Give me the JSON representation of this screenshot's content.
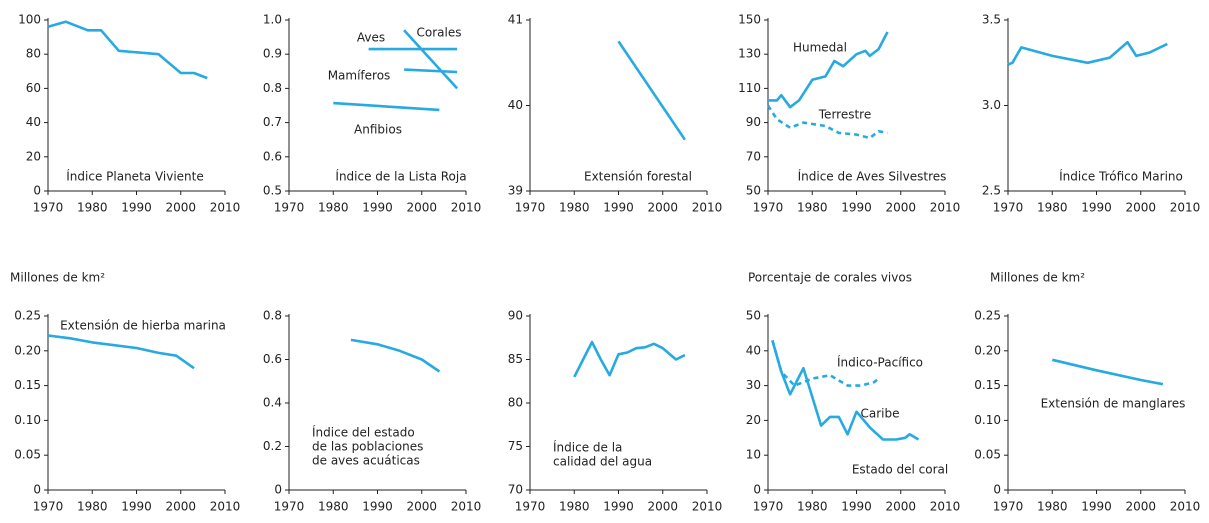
{
  "chart_data": [
    {
      "type": "line",
      "title": "Índice Planeta Viviente",
      "xlim": [
        1970,
        2010
      ],
      "xticks": [
        1970,
        1980,
        1990,
        2000,
        2010
      ],
      "ylim": [
        0,
        100
      ],
      "yticks": [
        0,
        20,
        40,
        60,
        80,
        100
      ],
      "series": [
        {
          "color": "#27aae1",
          "x": [
            1970,
            1974,
            1979,
            1982,
            1986,
            1995,
            2000,
            2003,
            2006
          ],
          "values": [
            96,
            99,
            94,
            94,
            82,
            80,
            69,
            69,
            66
          ]
        }
      ]
    },
    {
      "type": "line",
      "title": "Índice de la Lista Roja",
      "xlim": [
        1970,
        2010
      ],
      "xticks": [
        1970,
        1980,
        1990,
        2000,
        2010
      ],
      "ylim": [
        0.5,
        1
      ],
      "yticks": [
        0.5,
        0.6,
        0.7,
        0.8,
        0.9,
        {
          "value": 1,
          "label": "1.0"
        }
      ],
      "series": [
        {
          "name": "Aves",
          "color": "#27aae1",
          "x": [
            1988,
            2008
          ],
          "values": [
            0.915,
            0.915
          ]
        },
        {
          "name": "Corales",
          "color": "#27aae1",
          "x": [
            1996,
            2008
          ],
          "values": [
            0.97,
            0.8
          ]
        },
        {
          "name": "Mamíferos",
          "color": "#27aae1",
          "x": [
            1996,
            2008
          ],
          "values": [
            0.855,
            0.848
          ]
        },
        {
          "name": "Anfibios",
          "color": "#27aae1",
          "x": [
            1980,
            2004
          ],
          "values": [
            0.757,
            0.737
          ]
        }
      ]
    },
    {
      "type": "line",
      "title": "Extensión forestal",
      "xlim": [
        1970,
        2010
      ],
      "xticks": [
        1970,
        1980,
        1990,
        2000,
        2010
      ],
      "ylim": [
        39,
        41
      ],
      "yticks": [
        39,
        40,
        41
      ],
      "series": [
        {
          "color": "#27aae1",
          "x": [
            1990,
            2005
          ],
          "values": [
            40.75,
            39.6
          ]
        }
      ]
    },
    {
      "type": "line",
      "title": "Índice de Aves Silvestres",
      "xlim": [
        1970,
        2010
      ],
      "xticks": [
        1970,
        1980,
        1990,
        2000,
        2010
      ],
      "ylim": [
        50,
        150
      ],
      "yticks": [
        50,
        70,
        90,
        110,
        130,
        150
      ],
      "series": [
        {
          "name": "Humedal",
          "color": "#27aae1",
          "x": [
            1970,
            1972,
            1973,
            1975,
            1977,
            1980,
            1983,
            1985,
            1987,
            1990,
            1992,
            1993,
            1995,
            1997
          ],
          "values": [
            103,
            103,
            106,
            99,
            103,
            115,
            117,
            126,
            123,
            130,
            132,
            129,
            133,
            143
          ]
        },
        {
          "name": "Terrestre",
          "color": "#27aae1",
          "dashed": true,
          "x": [
            1970,
            1972,
            1975,
            1978,
            1983,
            1986,
            1990,
            1993,
            1995,
            1997
          ],
          "values": [
            100,
            92,
            87,
            90,
            88,
            84,
            83,
            81,
            85,
            84
          ]
        }
      ]
    },
    {
      "type": "line",
      "title": "Índice Trófico Marino",
      "xlim": [
        1970,
        2010
      ],
      "xticks": [
        1970,
        1980,
        1990,
        2000,
        2010
      ],
      "ylim": [
        2.5,
        3.5
      ],
      "yticks": [
        2.5,
        {
          "value": 3,
          "label": "3.0"
        },
        3.5
      ],
      "series": [
        {
          "color": "#27aae1",
          "x": [
            1970,
            1971,
            1973,
            1980,
            1988,
            1993,
            1997,
            1999,
            2002,
            2006
          ],
          "values": [
            3.24,
            3.25,
            3.34,
            3.29,
            3.25,
            3.28,
            3.37,
            3.29,
            3.31,
            3.36
          ]
        }
      ]
    },
    {
      "type": "line",
      "ylabel": "Millones de km²",
      "title": "Extensión de hierba marina",
      "xlim": [
        1970,
        2010
      ],
      "xticks": [
        1970,
        1980,
        1990,
        2000,
        2010
      ],
      "ylim": [
        0,
        0.25
      ],
      "yticks": [
        0,
        0.05,
        {
          "value": 0.1,
          "label": "0.10"
        },
        0.15,
        {
          "value": 0.2,
          "label": "0.20"
        },
        0.25
      ],
      "series": [
        {
          "color": "#27aae1",
          "x": [
            1970,
            1975,
            1980,
            1990,
            1995,
            1999,
            2003
          ],
          "values": [
            0.222,
            0.218,
            0.212,
            0.204,
            0.197,
            0.193,
            0.175
          ]
        }
      ]
    },
    {
      "type": "line",
      "annotation": [
        "Índice del estado",
        "de las poblaciones",
        "de aves acuáticas"
      ],
      "xlim": [
        1970,
        2010
      ],
      "xticks": [
        1970,
        1980,
        1990,
        2000,
        2010
      ],
      "ylim": [
        0,
        0.8
      ],
      "yticks": [
        0,
        0.2,
        0.4,
        0.6,
        0.8
      ],
      "series": [
        {
          "color": "#27aae1",
          "x": [
            1984,
            1990,
            1995,
            2000,
            2004
          ],
          "values": [
            0.69,
            0.67,
            0.64,
            0.6,
            0.545
          ]
        }
      ]
    },
    {
      "type": "line",
      "annotation": [
        "Índice de la",
        "calidad del agua"
      ],
      "xlim": [
        1970,
        2010
      ],
      "xticks": [
        1970,
        1980,
        1990,
        2000,
        2010
      ],
      "ylim": [
        70,
        90
      ],
      "yticks": [
        70,
        75,
        80,
        85,
        90
      ],
      "series": [
        {
          "color": "#27aae1",
          "x": [
            1980,
            1982,
            1984,
            1986,
            1988,
            1990,
            1992,
            1994,
            1996,
            1998,
            2000,
            2003,
            2005
          ],
          "values": [
            83,
            85,
            87,
            85,
            83.2,
            85.6,
            85.8,
            86.3,
            86.4,
            86.8,
            86.3,
            85,
            85.5
          ]
        }
      ]
    },
    {
      "type": "line",
      "ylabel": "Porcentaje de corales vivos",
      "title": "Estado del coral",
      "xlim": [
        1970,
        2010
      ],
      "xticks": [
        1970,
        1980,
        1990,
        2000,
        2010
      ],
      "ylim": [
        0,
        50
      ],
      "yticks": [
        0,
        10,
        20,
        30,
        40,
        50
      ],
      "series": [
        {
          "name": "Índico-Pacífico",
          "color": "#27aae1",
          "dashed": true,
          "x": [
            1971,
            1973,
            1976,
            1980,
            1984,
            1988,
            1991,
            1994,
            1995
          ],
          "values": [
            43,
            34,
            30,
            32,
            33,
            30,
            30,
            31,
            32
          ]
        },
        {
          "name": "Caribe",
          "color": "#27aae1",
          "x": [
            1971,
            1973,
            1975,
            1978,
            1982,
            1984,
            1986,
            1988,
            1990,
            1993,
            1996,
            1999,
            2001,
            2002,
            2004
          ],
          "values": [
            43,
            34,
            27.5,
            35,
            18.5,
            21,
            21,
            16,
            22.5,
            18,
            14.5,
            14.5,
            15,
            16,
            14.5
          ]
        }
      ]
    },
    {
      "type": "line",
      "ylabel": "Millones de km²",
      "title": "Extensión de manglares",
      "xlim": [
        1970,
        2010
      ],
      "xticks": [
        1970,
        1980,
        1990,
        2000,
        2010
      ],
      "ylim": [
        0,
        0.25
      ],
      "yticks": [
        0,
        0.05,
        {
          "value": 0.1,
          "label": "0.10"
        },
        0.15,
        {
          "value": 0.2,
          "label": "0.20"
        },
        0.25
      ],
      "series": [
        {
          "color": "#27aae1",
          "x": [
            1980,
            1990,
            2000,
            2005
          ],
          "values": [
            0.187,
            0.172,
            0.158,
            0.152
          ]
        }
      ]
    }
  ]
}
